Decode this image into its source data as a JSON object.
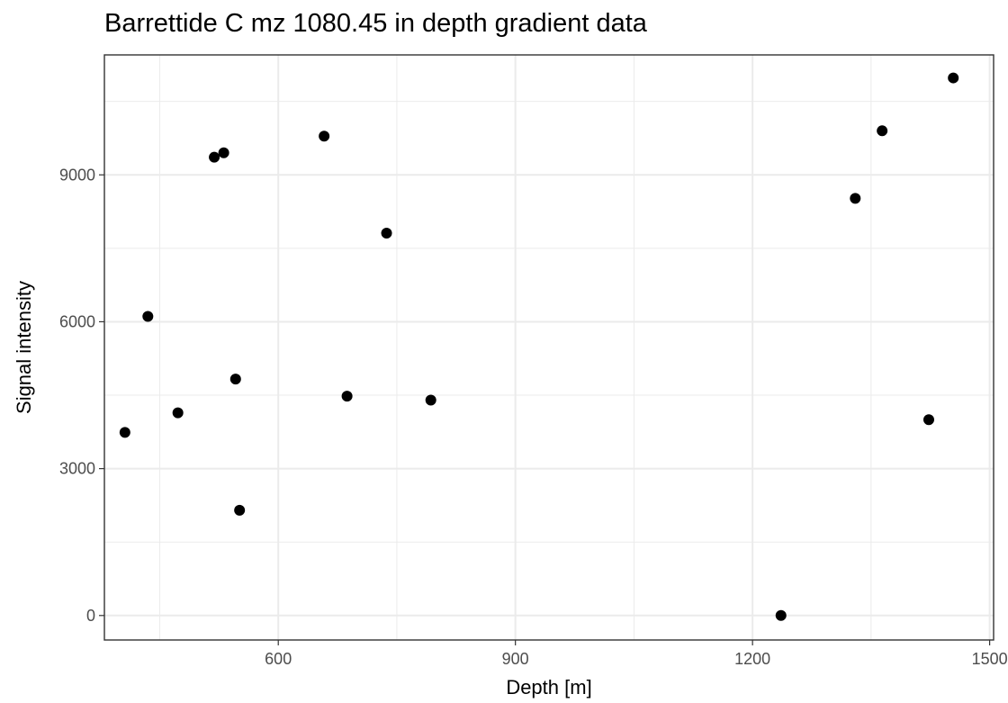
{
  "chart_data": {
    "type": "scatter",
    "title": "Barrettide C mz 1080.45 in depth gradient data",
    "xlabel": "Depth [m]",
    "ylabel": "Signal intensity",
    "xlim": [
      380,
      1505
    ],
    "ylim": [
      -500,
      11450
    ],
    "x_ticks": [
      600,
      900,
      1200,
      1500
    ],
    "y_ticks": [
      0,
      3000,
      6000,
      9000
    ],
    "x_tick_labels": [
      "600",
      "900",
      "1200",
      "1500"
    ],
    "y_tick_labels": [
      "0",
      "3000",
      "6000",
      "9000"
    ],
    "x_minor": [
      450,
      750,
      1050,
      1350
    ],
    "y_minor": [
      1500,
      4500,
      7500,
      10500
    ],
    "grid": true,
    "points": [
      {
        "x": 406,
        "y": 3740
      },
      {
        "x": 435,
        "y": 6110
      },
      {
        "x": 473,
        "y": 4140
      },
      {
        "x": 519,
        "y": 9360
      },
      {
        "x": 531,
        "y": 9450
      },
      {
        "x": 546,
        "y": 4830
      },
      {
        "x": 551,
        "y": 2150
      },
      {
        "x": 658,
        "y": 9790
      },
      {
        "x": 687,
        "y": 4480
      },
      {
        "x": 737,
        "y": 7810
      },
      {
        "x": 793,
        "y": 4400
      },
      {
        "x": 1236,
        "y": 0
      },
      {
        "x": 1330,
        "y": 8520
      },
      {
        "x": 1364,
        "y": 9900
      },
      {
        "x": 1423,
        "y": 4000
      },
      {
        "x": 1454,
        "y": 10980
      }
    ],
    "marker_color": "#000000",
    "grid_color": "#ebebeb",
    "frame_color": "#333333"
  }
}
